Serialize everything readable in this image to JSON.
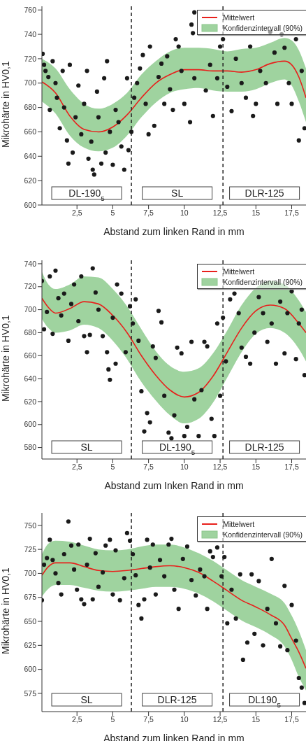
{
  "chart_data": [
    {
      "type": "scatter",
      "xlabel": "Abstand zum linken Rand in mm",
      "ylabel": "Mikrohärte in HV0,1",
      "xlim": [
        0.05,
        18.5
      ],
      "xticks": [
        {
          "value": 2.5,
          "label": "2,5"
        },
        5,
        {
          "value": 7.5,
          "label": "7,5"
        },
        10,
        {
          "value": 12.5,
          "label": "12,5"
        },
        15,
        {
          "value": 17.5,
          "label": "17,5"
        }
      ],
      "ylim": [
        600,
        763
      ],
      "yticks": [
        600,
        620,
        640,
        660,
        680,
        700,
        720,
        740,
        760
      ],
      "legend": "top right",
      "ref_lines": [
        {
          "axis": "x",
          "value": 6.3,
          "color": "#222222",
          "line_style": "dashed"
        },
        {
          "axis": "x",
          "value": 12.7,
          "color": "#222222",
          "line_style": "dashed"
        }
      ],
      "annotations": [
        "Konfidenzintervall (90%)",
        "DL-190$_{5}$",
        "SL",
        "DLR-125"
      ],
      "series": [
        {
          "type": "scatter",
          "color": "#1a1a1a",
          "marker": "circle",
          "x": [
            0.1,
            0.2,
            0.3,
            0.5,
            0.6,
            0.8,
            1.0,
            1.1,
            1.3,
            1.5,
            1.6,
            1.8,
            1.9,
            2.0,
            2.2,
            2.4,
            2.6,
            2.8,
            3.0,
            3.2,
            3.3,
            3.5,
            3.6,
            3.7,
            3.9,
            4.0,
            4.2,
            4.4,
            4.5,
            4.6,
            4.8,
            5.0,
            5.2,
            5.4,
            5.6,
            5.8,
            6.0,
            6.1,
            6.3,
            6.5,
            6.7,
            6.9,
            7.1,
            7.3,
            7.5,
            7.6,
            7.9,
            8.2,
            8.4,
            8.6,
            8.8,
            9.0,
            9.2,
            9.4,
            9.6,
            9.8,
            10.0,
            10.4,
            10.7,
            10.5,
            10.6,
            10.7,
            11.5,
            11.8,
            12.0,
            12.3,
            12.5,
            12.7,
            13.0,
            13.3,
            13.6,
            14.0,
            14.3,
            14.6,
            14.8,
            15.0,
            15.3,
            15.7,
            16.0,
            16.3,
            16.5,
            16.8,
            17.0,
            17.3,
            17.5,
            17.8,
            18.0,
            18.2,
            18.4
          ],
          "values": [
            724,
            715,
            710,
            705,
            678,
            718,
            700,
            688,
            663,
            710,
            680,
            653,
            634,
            715,
            643,
            672,
            698,
            658,
            683,
            710,
            638,
            652,
            629,
            625,
            693,
            672,
            634,
            704,
            643,
            718,
            660,
            633,
            678,
            668,
            648,
            629,
            704,
            645,
            660,
            688,
            700,
            712,
            723,
            683,
            658,
            730,
            665,
            705,
            716,
            683,
            722,
            695,
            678,
            736,
            730,
            710,
            683,
            668,
            704,
            748,
            741,
            758,
            694,
            715,
            673,
            704,
            730,
            736,
            697,
            677,
            720,
            700,
            688,
            730,
            673,
            683,
            710,
            700,
            742,
            725,
            683,
            740,
            729,
            700,
            683,
            736,
            653,
            710,
            663
          ]
        },
        {
          "type": "line",
          "name": "Mittelwert",
          "color": "#e8201c",
          "x": [
            0.05,
            1,
            2,
            3,
            4,
            5,
            6,
            7,
            8,
            9,
            10,
            11,
            12,
            13,
            14,
            15,
            16,
            17,
            17.5,
            18,
            18.5
          ],
          "values": [
            701,
            692,
            673,
            662,
            660,
            664,
            674,
            688,
            700,
            707,
            711,
            711,
            710,
            710,
            709,
            711,
            716,
            718,
            715,
            705,
            688
          ],
          "lower": [
            685,
            675,
            657,
            647,
            644,
            647,
            657,
            672,
            684,
            692,
            695,
            696,
            694,
            693,
            693,
            695,
            700,
            703,
            698,
            685,
            668
          ],
          "upper": [
            720,
            712,
            695,
            683,
            679,
            683,
            692,
            707,
            718,
            726,
            729,
            729,
            728,
            726,
            728,
            729,
            733,
            737,
            735,
            727,
            712
          ]
        }
      ]
    },
    {
      "type": "scatter",
      "xlabel": "Abstand zum Inken Rand in mm",
      "ylabel": "Mikrohärte in HV0,1",
      "xlim": [
        0.05,
        18.5
      ],
      "xticks": [
        {
          "value": 2.5,
          "label": "2,5"
        },
        5,
        {
          "value": 7.5,
          "label": "7,5"
        },
        10,
        {
          "value": 12.5,
          "label": "12,5"
        },
        15,
        {
          "value": 17.5,
          "label": "17,5"
        }
      ],
      "ylim": [
        570,
        743
      ],
      "yticks": [
        580,
        600,
        620,
        640,
        660,
        680,
        700,
        720,
        740
      ],
      "legend": "top right",
      "ref_lines": [
        {
          "axis": "x",
          "value": 6.3,
          "color": "#222222",
          "line_style": "dashed"
        },
        {
          "axis": "x",
          "value": 12.7,
          "color": "#222222",
          "line_style": "dashed"
        }
      ],
      "annotations": [
        "Konfidenzintervall (90%)",
        "SL",
        "DL-190$_{5}$",
        "DLR-125"
      ],
      "series": [
        {
          "type": "scatter",
          "color": "#1a1a1a",
          "marker": "circle",
          "x": [
            0.05,
            0.2,
            0.4,
            0.6,
            0.8,
            1.0,
            1.2,
            1.4,
            1.6,
            1.9,
            2.1,
            2.3,
            2.6,
            2.8,
            3.0,
            3.2,
            3.4,
            3.6,
            3.8,
            4.0,
            4.3,
            4.6,
            4.7,
            4.8,
            5.0,
            5.2,
            5.3,
            5.6,
            5.9,
            6.2,
            6.4,
            6.6,
            6.8,
            7.0,
            7.2,
            7.4,
            7.6,
            7.8,
            8.0,
            8.2,
            8.4,
            8.6,
            8.9,
            9.1,
            9.3,
            9.5,
            9.8,
            10.0,
            10.2,
            10.5,
            10.7,
            11.0,
            11.2,
            11.4,
            11.6,
            11.9,
            12.1,
            12.3,
            12.5,
            12.7,
            12.9,
            13.2,
            13.5,
            13.8,
            14.0,
            14.3,
            14.6,
            14.9,
            15.2,
            15.5,
            15.8,
            16.1,
            16.4,
            16.7,
            17.0,
            17.2,
            17.5,
            17.8,
            18.0,
            18.2,
            18.4
          ],
          "values": [
            725,
            683,
            698,
            729,
            679,
            734,
            710,
            695,
            714,
            673,
            705,
            722,
            690,
            729,
            677,
            663,
            678,
            736,
            715,
            700,
            677,
            663,
            648,
            639,
            693,
            653,
            722,
            714,
            663,
            703,
            688,
            709,
            673,
            629,
            594,
            610,
            602,
            668,
            658,
            699,
            689,
            625,
            593,
            588,
            608,
            667,
            662,
            590,
            598,
            672,
            622,
            590,
            630,
            672,
            668,
            605,
            590,
            688,
            625,
            693,
            655,
            709,
            714,
            697,
            667,
            659,
            653,
            680,
            711,
            697,
            672,
            688,
            653,
            707,
            662,
            697,
            716,
            657,
            688,
            700,
            643
          ]
        },
        {
          "type": "line",
          "name": "Mittelwert",
          "color": "#e8201c",
          "x": [
            0.05,
            0.5,
            1,
            2,
            3,
            4,
            5,
            6,
            7,
            8,
            9,
            10,
            11,
            12,
            13,
            14,
            15,
            16,
            17,
            18,
            18.5
          ],
          "values": [
            710,
            702,
            697,
            701,
            707,
            705,
            695,
            680,
            660,
            643,
            630,
            624,
            628,
            642,
            663,
            684,
            699,
            704,
            701,
            688,
            680
          ],
          "lower": [
            692,
            684,
            680,
            682,
            687,
            684,
            673,
            657,
            637,
            621,
            608,
            601,
            605,
            619,
            641,
            663,
            679,
            684,
            680,
            666,
            655
          ],
          "upper": [
            733,
            722,
            718,
            722,
            729,
            728,
            718,
            703,
            683,
            664,
            651,
            646,
            649,
            662,
            682,
            704,
            719,
            725,
            722,
            708,
            698
          ]
        }
      ]
    },
    {
      "type": "scatter",
      "xlabel": "Abstand zum linken Rand in mm",
      "ylabel": "Mikrohärte in HV0,1",
      "xlim": [
        0.05,
        18.5
      ],
      "xticks": [
        {
          "value": 2.5,
          "label": "2,5"
        },
        5,
        {
          "value": 7.5,
          "label": "7,5"
        },
        10,
        {
          "value": 12.5,
          "label": "12,5"
        },
        15,
        {
          "value": 17.5,
          "label": "17,5"
        }
      ],
      "ylim": [
        556,
        763
      ],
      "yticks": [
        575,
        600,
        625,
        650,
        675,
        700,
        725,
        750
      ],
      "legend": "top right",
      "ref_lines": [
        {
          "axis": "x",
          "value": 6.3,
          "color": "#222222",
          "line_style": "dashed"
        },
        {
          "axis": "x",
          "value": 12.7,
          "color": "#222222",
          "line_style": "dashed"
        }
      ],
      "annotations": [
        "Konfidenzintervall (90%)",
        "SL",
        "DLR-125",
        "DL190$_{5}$"
      ],
      "series": [
        {
          "type": "scatter",
          "color": "#1a1a1a",
          "marker": "circle",
          "x": [
            0.05,
            0.2,
            0.4,
            0.6,
            0.8,
            1.0,
            1.2,
            1.4,
            1.6,
            1.9,
            2.1,
            2.3,
            2.5,
            2.6,
            2.8,
            3.0,
            3.2,
            3.4,
            3.6,
            3.8,
            4.0,
            4.3,
            4.5,
            4.8,
            5.0,
            5.2,
            5.5,
            5.8,
            6.0,
            6.2,
            6.4,
            6.6,
            6.8,
            7.0,
            7.2,
            7.4,
            7.6,
            7.8,
            8.0,
            8.3,
            8.6,
            8.9,
            9.1,
            9.3,
            9.6,
            9.9,
            10.2,
            10.5,
            10.8,
            11.1,
            11.4,
            11.6,
            11.8,
            12.0,
            12.3,
            12.6,
            12.8,
            13.0,
            13.3,
            13.6,
            13.9,
            14.1,
            14.4,
            14.7,
            14.9,
            15.2,
            15.5,
            15.8,
            16.1,
            16.4,
            16.7,
            17.0,
            17.2,
            17.5,
            17.8,
            18.0,
            18.2,
            18.4
          ],
          "values": [
            672,
            709,
            716,
            735,
            714,
            700,
            690,
            678,
            720,
            754,
            729,
            704,
            683,
            730,
            673,
            668,
            709,
            736,
            673,
            721,
            686,
            701,
            729,
            735,
            678,
            724,
            672,
            695,
            742,
            734,
            720,
            698,
            667,
            653,
            673,
            735,
            706,
            730,
            678,
            714,
            697,
            730,
            736,
            683,
            663,
            715,
            728,
            693,
            677,
            704,
            697,
            663,
            723,
            717,
            727,
            697,
            717,
            648,
            683,
            653,
            699,
            610,
            628,
            699,
            637,
            692,
            625,
            663,
            715,
            648,
            624,
            687,
            620,
            667,
            630,
            591,
            581,
            565
          ]
        },
        {
          "type": "line",
          "name": "Mittelwert",
          "color": "#e8201c",
          "x": [
            0.05,
            0.5,
            1,
            2,
            3,
            4,
            5,
            6,
            7,
            8,
            9,
            10,
            11,
            12,
            13,
            14,
            15,
            16,
            17,
            17.5,
            18,
            18.5
          ],
          "values": [
            698,
            707,
            711,
            711,
            707,
            703,
            702,
            703,
            705,
            707,
            708,
            706,
            701,
            692,
            682,
            672,
            665,
            657,
            646,
            632,
            618,
            601
          ],
          "lower": [
            676,
            684,
            688,
            688,
            685,
            682,
            681,
            682,
            684,
            686,
            686,
            684,
            679,
            671,
            661,
            651,
            644,
            636,
            624,
            610,
            592,
            578
          ],
          "upper": [
            720,
            731,
            734,
            733,
            729,
            725,
            724,
            725,
            728,
            730,
            730,
            727,
            721,
            713,
            703,
            693,
            686,
            679,
            669,
            656,
            640,
            620
          ]
        }
      ]
    }
  ]
}
